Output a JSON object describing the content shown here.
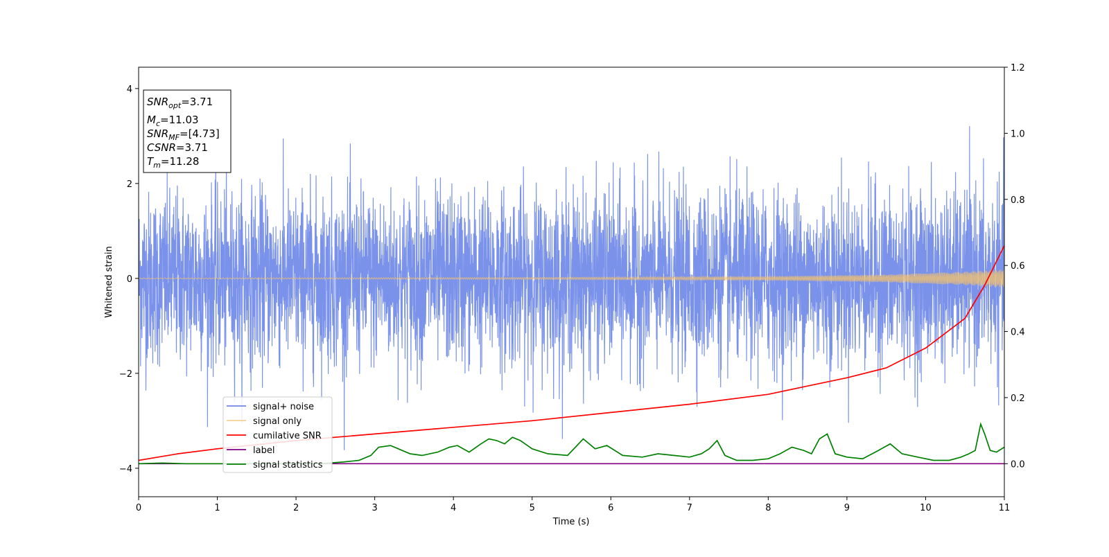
{
  "chart_data": {
    "type": "line",
    "xlabel": "Time (s)",
    "ylabel": "Whitened strain",
    "xlim": [
      0,
      11
    ],
    "ylim": [
      -4.6,
      4.45
    ],
    "y2lim": [
      -0.1,
      1.2
    ],
    "xticks": [
      "0",
      "1",
      "2",
      "3",
      "4",
      "5",
      "6",
      "7",
      "8",
      "9",
      "10",
      "11"
    ],
    "yticks": [
      "4",
      "2",
      "0",
      "−2",
      "−4"
    ],
    "yticks_values": [
      4,
      2,
      0,
      -2,
      -4
    ],
    "y2ticks": [
      "1.2",
      "1.0",
      "0.8",
      "0.6",
      "0.4",
      "0.2",
      "0.0"
    ],
    "y2ticks_values": [
      1.2,
      1.0,
      0.8,
      0.6,
      0.4,
      0.2,
      0.0
    ],
    "grid": false,
    "legend_position": "lower-left",
    "info_box": {
      "lines": [
        {
          "sym": "SNR",
          "sub": "opt",
          "val": "=3.71"
        },
        {
          "sym": "M",
          "sub": "c",
          "val": "=11.03"
        },
        {
          "sym": "SNR",
          "sub": "MF",
          "val": "=[4.73]"
        },
        {
          "sym": "CSNR",
          "sub": "",
          "val": "=3.71"
        },
        {
          "sym": "T",
          "sub": "m",
          "val": "=11.28"
        }
      ]
    },
    "series": [
      {
        "name": "signal+ noise",
        "color": "#6b86e8",
        "axis": "left",
        "kind": "noise",
        "amplitude_sd": 0.9,
        "peak_max": 4.0,
        "peak_min": -4.15
      },
      {
        "name": "signal only",
        "color": "#f5c26b",
        "axis": "left",
        "kind": "chirp",
        "envelope": {
          "t": [
            0,
            5,
            8,
            9.5,
            10.5,
            11
          ],
          "a": [
            0.01,
            0.02,
            0.04,
            0.08,
            0.14,
            0.19
          ]
        }
      },
      {
        "name": "cumilative SNR",
        "color": "#ff0000",
        "axis": "right",
        "x": [
          0,
          0.5,
          1,
          2,
          3,
          4,
          5,
          6,
          7,
          8,
          8.5,
          9,
          9.5,
          10,
          10.5,
          10.75,
          11
        ],
        "y": [
          0.01,
          0.03,
          0.045,
          0.07,
          0.09,
          0.11,
          0.13,
          0.155,
          0.18,
          0.21,
          0.235,
          0.26,
          0.29,
          0.35,
          0.44,
          0.54,
          0.66
        ]
      },
      {
        "name": "label",
        "color": "#800080",
        "axis": "right",
        "x": [
          0,
          11
        ],
        "y": [
          0.0,
          0.0
        ]
      },
      {
        "name": "signal statistics",
        "color": "#008000",
        "axis": "right",
        "x": [
          0,
          0.3,
          0.6,
          1.0,
          1.5,
          2.0,
          2.3,
          2.6,
          2.8,
          2.95,
          3.05,
          3.2,
          3.3,
          3.45,
          3.6,
          3.8,
          3.95,
          4.05,
          4.2,
          4.35,
          4.45,
          4.55,
          4.65,
          4.75,
          4.85,
          5.0,
          5.2,
          5.45,
          5.55,
          5.65,
          5.8,
          5.95,
          6.15,
          6.4,
          6.6,
          6.8,
          7.0,
          7.15,
          7.25,
          7.35,
          7.45,
          7.6,
          7.8,
          8.0,
          8.15,
          8.3,
          8.45,
          8.55,
          8.65,
          8.75,
          8.85,
          9.0,
          9.2,
          9.4,
          9.55,
          9.7,
          9.9,
          10.1,
          10.3,
          10.45,
          10.55,
          10.63,
          10.7,
          10.75,
          10.82,
          10.9,
          11.0
        ],
        "y": [
          0.0,
          0.002,
          0.0,
          0.0,
          0.0,
          0.0,
          0.0,
          0.005,
          0.01,
          0.025,
          0.05,
          0.055,
          0.045,
          0.03,
          0.025,
          0.035,
          0.05,
          0.055,
          0.035,
          0.06,
          0.075,
          0.07,
          0.06,
          0.08,
          0.07,
          0.045,
          0.03,
          0.025,
          0.05,
          0.075,
          0.045,
          0.055,
          0.025,
          0.02,
          0.03,
          0.025,
          0.02,
          0.03,
          0.045,
          0.07,
          0.025,
          0.01,
          0.01,
          0.015,
          0.03,
          0.05,
          0.04,
          0.03,
          0.075,
          0.09,
          0.03,
          0.02,
          0.015,
          0.04,
          0.06,
          0.03,
          0.02,
          0.01,
          0.01,
          0.02,
          0.03,
          0.04,
          0.12,
          0.09,
          0.04,
          0.035,
          0.05
        ]
      }
    ]
  }
}
